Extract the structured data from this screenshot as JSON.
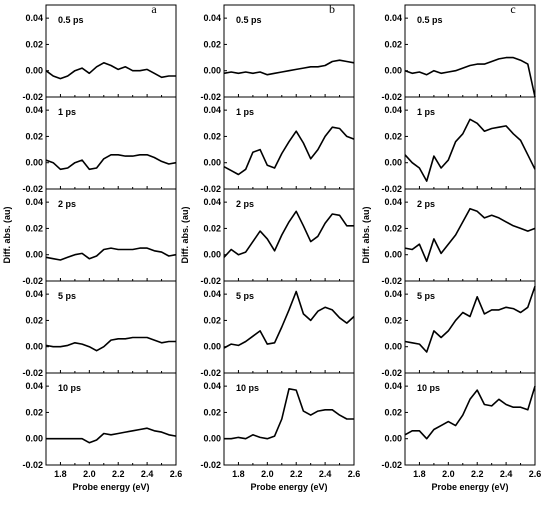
{
  "chart_data": {
    "type": "line",
    "xlabel": "Probe energy (eV)",
    "ylabel": "Diff. abs. (au)",
    "xlim": [
      1.7,
      2.6
    ],
    "ylim": [
      -0.02,
      0.05
    ],
    "xticks": [
      "1.8",
      "2.0",
      "2.2",
      "2.4",
      "2.6"
    ],
    "yticks": [
      "-0.02",
      "0.00",
      "0.02",
      "0.04"
    ],
    "columns": [
      {
        "label": "a",
        "panels": [
          {
            "time": "0.5 ps",
            "x": [
              1.7,
              1.75,
              1.8,
              1.85,
              1.9,
              1.95,
              2.0,
              2.05,
              2.1,
              2.15,
              2.2,
              2.25,
              2.3,
              2.35,
              2.4,
              2.45,
              2.5,
              2.55,
              2.6
            ],
            "y": [
              0.0,
              -0.004,
              -0.006,
              -0.004,
              0.0,
              0.002,
              -0.002,
              0.003,
              0.006,
              0.004,
              0.001,
              0.003,
              0.0,
              0.0,
              0.001,
              -0.002,
              -0.005,
              -0.004,
              -0.004
            ]
          },
          {
            "time": "1 ps",
            "x": [
              1.7,
              1.75,
              1.8,
              1.85,
              1.9,
              1.95,
              2.0,
              2.05,
              2.1,
              2.15,
              2.2,
              2.25,
              2.3,
              2.35,
              2.4,
              2.45,
              2.5,
              2.55,
              2.6
            ],
            "y": [
              0.002,
              0.0,
              -0.005,
              -0.004,
              0.0,
              0.002,
              -0.005,
              -0.004,
              0.003,
              0.006,
              0.006,
              0.005,
              0.005,
              0.006,
              0.006,
              0.004,
              0.001,
              -0.001,
              0.0
            ]
          },
          {
            "time": "2 ps",
            "x": [
              1.7,
              1.75,
              1.8,
              1.85,
              1.9,
              1.95,
              2.0,
              2.05,
              2.1,
              2.15,
              2.2,
              2.25,
              2.3,
              2.35,
              2.4,
              2.45,
              2.5,
              2.55,
              2.6
            ],
            "y": [
              -0.002,
              -0.003,
              -0.004,
              -0.002,
              0.0,
              0.001,
              -0.003,
              -0.001,
              0.004,
              0.005,
              0.004,
              0.004,
              0.004,
              0.005,
              0.005,
              0.003,
              0.002,
              -0.001,
              0.0
            ]
          },
          {
            "time": "5 ps",
            "x": [
              1.7,
              1.75,
              1.8,
              1.85,
              1.9,
              1.95,
              2.0,
              2.05,
              2.1,
              2.15,
              2.2,
              2.25,
              2.3,
              2.35,
              2.4,
              2.45,
              2.5,
              2.55,
              2.6
            ],
            "y": [
              0.001,
              0.0,
              0.0,
              0.001,
              0.003,
              0.002,
              0.0,
              -0.003,
              0.0,
              0.005,
              0.006,
              0.006,
              0.007,
              0.007,
              0.007,
              0.005,
              0.003,
              0.004,
              0.004
            ]
          },
          {
            "time": "10 ps",
            "x": [
              1.7,
              1.75,
              1.8,
              1.85,
              1.9,
              1.95,
              2.0,
              2.05,
              2.1,
              2.15,
              2.2,
              2.25,
              2.3,
              2.35,
              2.4,
              2.45,
              2.5,
              2.55,
              2.6
            ],
            "y": [
              0.0,
              0.0,
              0.0,
              0.0,
              0.0,
              0.0,
              -0.003,
              -0.001,
              0.004,
              0.003,
              0.004,
              0.005,
              0.006,
              0.007,
              0.008,
              0.006,
              0.005,
              0.003,
              0.002
            ]
          }
        ]
      },
      {
        "label": "b",
        "panels": [
          {
            "time": "0.5 ps",
            "x": [
              1.7,
              1.75,
              1.8,
              1.85,
              1.9,
              1.95,
              2.0,
              2.05,
              2.1,
              2.15,
              2.2,
              2.25,
              2.3,
              2.35,
              2.4,
              2.45,
              2.5,
              2.55,
              2.6
            ],
            "y": [
              -0.002,
              -0.001,
              -0.002,
              -0.001,
              -0.002,
              -0.001,
              -0.003,
              -0.002,
              -0.001,
              0.0,
              0.001,
              0.002,
              0.003,
              0.003,
              0.004,
              0.007,
              0.008,
              0.007,
              0.006
            ]
          },
          {
            "time": "1 ps",
            "x": [
              1.7,
              1.75,
              1.8,
              1.85,
              1.9,
              1.95,
              2.0,
              2.05,
              2.1,
              2.15,
              2.2,
              2.25,
              2.3,
              2.35,
              2.4,
              2.45,
              2.5,
              2.55,
              2.6
            ],
            "y": [
              -0.003,
              -0.006,
              -0.009,
              -0.005,
              0.008,
              0.01,
              -0.002,
              -0.004,
              0.007,
              0.016,
              0.024,
              0.015,
              0.003,
              0.01,
              0.02,
              0.027,
              0.026,
              0.02,
              0.018
            ]
          },
          {
            "time": "2 ps",
            "x": [
              1.7,
              1.75,
              1.8,
              1.85,
              1.9,
              1.95,
              2.0,
              2.05,
              2.1,
              2.15,
              2.2,
              2.25,
              2.3,
              2.35,
              2.4,
              2.45,
              2.5,
              2.55,
              2.6
            ],
            "y": [
              -0.002,
              0.004,
              0.0,
              0.002,
              0.01,
              0.018,
              0.012,
              0.003,
              0.015,
              0.025,
              0.033,
              0.022,
              0.01,
              0.014,
              0.024,
              0.031,
              0.03,
              0.022,
              0.022
            ]
          },
          {
            "time": "5 ps",
            "x": [
              1.7,
              1.75,
              1.8,
              1.85,
              1.9,
              1.95,
              2.0,
              2.05,
              2.1,
              2.15,
              2.2,
              2.25,
              2.3,
              2.35,
              2.4,
              2.45,
              2.5,
              2.55,
              2.6
            ],
            "y": [
              -0.001,
              0.002,
              0.001,
              0.004,
              0.008,
              0.012,
              0.002,
              0.003,
              0.015,
              0.028,
              0.042,
              0.025,
              0.02,
              0.027,
              0.03,
              0.028,
              0.022,
              0.018,
              0.023
            ]
          },
          {
            "time": "10 ps",
            "x": [
              1.7,
              1.75,
              1.8,
              1.85,
              1.9,
              1.95,
              2.0,
              2.05,
              2.1,
              2.15,
              2.2,
              2.25,
              2.3,
              2.35,
              2.4,
              2.45,
              2.5,
              2.55,
              2.6
            ],
            "y": [
              0.0,
              0.0,
              0.001,
              0.0,
              0.003,
              0.001,
              0.0,
              0.002,
              0.015,
              0.038,
              0.037,
              0.021,
              0.018,
              0.021,
              0.022,
              0.022,
              0.018,
              0.015,
              0.015
            ]
          }
        ]
      },
      {
        "label": "c",
        "panels": [
          {
            "time": "0.5 ps",
            "x": [
              1.7,
              1.75,
              1.8,
              1.85,
              1.9,
              1.95,
              2.0,
              2.05,
              2.1,
              2.15,
              2.2,
              2.25,
              2.3,
              2.35,
              2.4,
              2.45,
              2.5,
              2.55,
              2.6
            ],
            "y": [
              0.0,
              -0.002,
              -0.001,
              -0.003,
              0.0,
              -0.002,
              -0.001,
              0.0,
              0.002,
              0.004,
              0.005,
              0.005,
              0.007,
              0.009,
              0.01,
              0.01,
              0.008,
              0.005,
              -0.02
            ]
          },
          {
            "time": "1 ps",
            "x": [
              1.7,
              1.75,
              1.8,
              1.85,
              1.9,
              1.95,
              2.0,
              2.05,
              2.1,
              2.15,
              2.2,
              2.25,
              2.3,
              2.35,
              2.4,
              2.45,
              2.5,
              2.55,
              2.6
            ],
            "y": [
              0.006,
              0.0,
              -0.004,
              -0.014,
              0.005,
              -0.004,
              0.002,
              0.016,
              0.022,
              0.033,
              0.03,
              0.024,
              0.026,
              0.027,
              0.028,
              0.022,
              0.017,
              0.006,
              -0.005
            ]
          },
          {
            "time": "2 ps",
            "x": [
              1.7,
              1.75,
              1.8,
              1.85,
              1.9,
              1.95,
              2.0,
              2.05,
              2.1,
              2.15,
              2.2,
              2.25,
              2.3,
              2.35,
              2.4,
              2.45,
              2.5,
              2.55,
              2.6
            ],
            "y": [
              0.005,
              0.004,
              0.008,
              -0.005,
              0.012,
              0.001,
              0.008,
              0.015,
              0.025,
              0.035,
              0.033,
              0.028,
              0.03,
              0.028,
              0.025,
              0.022,
              0.02,
              0.018,
              0.02
            ]
          },
          {
            "time": "5 ps",
            "x": [
              1.7,
              1.75,
              1.8,
              1.85,
              1.9,
              1.95,
              2.0,
              2.05,
              2.1,
              2.15,
              2.2,
              2.25,
              2.3,
              2.35,
              2.4,
              2.45,
              2.5,
              2.55,
              2.6
            ],
            "y": [
              0.004,
              0.003,
              0.002,
              -0.004,
              0.012,
              0.007,
              0.012,
              0.02,
              0.026,
              0.023,
              0.038,
              0.025,
              0.028,
              0.028,
              0.03,
              0.029,
              0.026,
              0.03,
              0.046
            ]
          },
          {
            "time": "10 ps",
            "x": [
              1.7,
              1.75,
              1.8,
              1.85,
              1.9,
              1.95,
              2.0,
              2.05,
              2.1,
              2.15,
              2.2,
              2.25,
              2.3,
              2.35,
              2.4,
              2.45,
              2.5,
              2.55,
              2.6
            ],
            "y": [
              0.003,
              0.006,
              0.006,
              0.0,
              0.007,
              0.01,
              0.013,
              0.01,
              0.018,
              0.03,
              0.037,
              0.026,
              0.025,
              0.03,
              0.026,
              0.024,
              0.024,
              0.022,
              0.04
            ]
          }
        ]
      }
    ]
  }
}
